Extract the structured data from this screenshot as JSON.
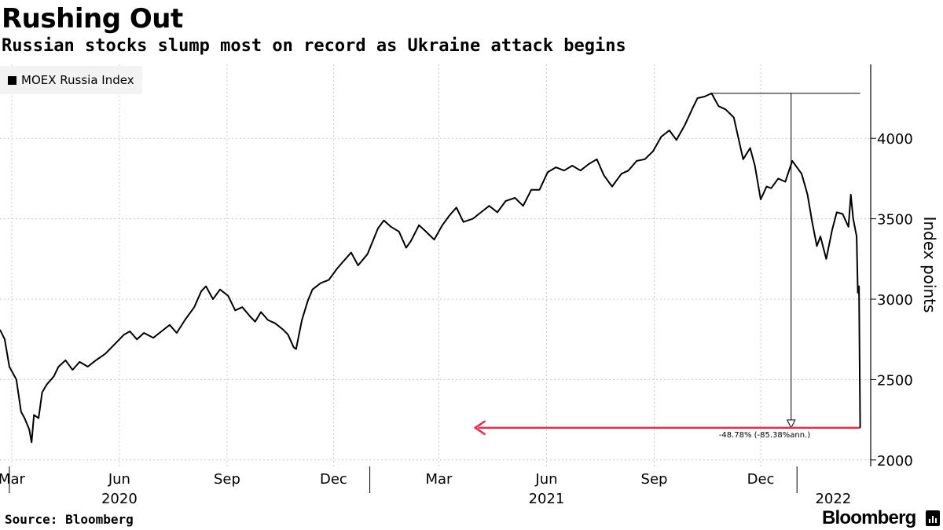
{
  "header": {
    "title": "Rushing Out",
    "subtitle": "Russian stocks slump most on record as Ukraine attack begins"
  },
  "footer": {
    "source": "Source: Bloomberg",
    "brand": "Bloomberg"
  },
  "colors": {
    "line": "#000000",
    "grid": "#cccccc",
    "arrow": "#e0304b",
    "legend_bg": "#f3f3f3"
  },
  "chart_data": {
    "type": "line",
    "title": "Rushing Out",
    "subtitle": "Russian stocks slump most on record as Ukraine attack begins",
    "ylabel": "Index points",
    "xlabel": "",
    "ylim": [
      1960,
      4460
    ],
    "xlim": [
      "2020-02-20",
      "2022-03-05"
    ],
    "yticks": [
      2000,
      2500,
      3000,
      3500,
      4000
    ],
    "grid": true,
    "legend_position": "top-left",
    "x_ticks": [
      {
        "date": "2020-03-01",
        "label": "Mar"
      },
      {
        "date": "2020-06-01",
        "label": "Jun"
      },
      {
        "date": "2020-09-01",
        "label": "Sep"
      },
      {
        "date": "2020-12-01",
        "label": "Dec"
      },
      {
        "date": "2021-03-01",
        "label": "Mar"
      },
      {
        "date": "2021-06-01",
        "label": "Jun"
      },
      {
        "date": "2021-09-01",
        "label": "Sep"
      },
      {
        "date": "2021-12-01",
        "label": "Dec"
      }
    ],
    "year_labels": [
      {
        "date": "2020-06-01",
        "label": "2020"
      },
      {
        "date": "2021-06-01",
        "label": "2021"
      },
      {
        "date": "2022-02-01",
        "label": "2022"
      }
    ],
    "series": [
      {
        "name": "MOEX Russia Index",
        "points": [
          [
            "2020-02-20",
            2810
          ],
          [
            "2020-02-24",
            2750
          ],
          [
            "2020-02-28",
            2580
          ],
          [
            "2020-03-05",
            2500
          ],
          [
            "2020-03-09",
            2300
          ],
          [
            "2020-03-12",
            2260
          ],
          [
            "2020-03-16",
            2190
          ],
          [
            "2020-03-18",
            2110
          ],
          [
            "2020-03-20",
            2280
          ],
          [
            "2020-03-24",
            2260
          ],
          [
            "2020-03-27",
            2420
          ],
          [
            "2020-03-31",
            2470
          ],
          [
            "2020-04-06",
            2520
          ],
          [
            "2020-04-10",
            2580
          ],
          [
            "2020-04-16",
            2620
          ],
          [
            "2020-04-22",
            2560
          ],
          [
            "2020-04-28",
            2610
          ],
          [
            "2020-05-05",
            2580
          ],
          [
            "2020-05-12",
            2620
          ],
          [
            "2020-05-20",
            2660
          ],
          [
            "2020-05-28",
            2720
          ],
          [
            "2020-06-05",
            2780
          ],
          [
            "2020-06-10",
            2800
          ],
          [
            "2020-06-16",
            2750
          ],
          [
            "2020-06-22",
            2790
          ],
          [
            "2020-06-30",
            2760
          ],
          [
            "2020-07-07",
            2800
          ],
          [
            "2020-07-14",
            2840
          ],
          [
            "2020-07-20",
            2790
          ],
          [
            "2020-07-27",
            2870
          ],
          [
            "2020-08-04",
            2950
          ],
          [
            "2020-08-10",
            3050
          ],
          [
            "2020-08-14",
            3080
          ],
          [
            "2020-08-20",
            3000
          ],
          [
            "2020-08-26",
            3060
          ],
          [
            "2020-09-02",
            3020
          ],
          [
            "2020-09-08",
            2930
          ],
          [
            "2020-09-14",
            2950
          ],
          [
            "2020-09-21",
            2890
          ],
          [
            "2020-09-25",
            2860
          ],
          [
            "2020-09-30",
            2920
          ],
          [
            "2020-10-06",
            2870
          ],
          [
            "2020-10-12",
            2850
          ],
          [
            "2020-10-19",
            2810
          ],
          [
            "2020-10-23",
            2780
          ],
          [
            "2020-10-28",
            2700
          ],
          [
            "2020-10-30",
            2690
          ],
          [
            "2020-11-04",
            2870
          ],
          [
            "2020-11-09",
            2990
          ],
          [
            "2020-11-13",
            3060
          ],
          [
            "2020-11-20",
            3100
          ],
          [
            "2020-11-27",
            3120
          ],
          [
            "2020-12-04",
            3190
          ],
          [
            "2020-12-10",
            3240
          ],
          [
            "2020-12-16",
            3290
          ],
          [
            "2020-12-22",
            3210
          ],
          [
            "2020-12-30",
            3280
          ],
          [
            "2021-01-08",
            3440
          ],
          [
            "2021-01-13",
            3490
          ],
          [
            "2021-01-19",
            3450
          ],
          [
            "2021-01-26",
            3420
          ],
          [
            "2021-02-01",
            3320
          ],
          [
            "2021-02-05",
            3360
          ],
          [
            "2021-02-12",
            3460
          ],
          [
            "2021-02-18",
            3420
          ],
          [
            "2021-02-25",
            3370
          ],
          [
            "2021-03-04",
            3460
          ],
          [
            "2021-03-10",
            3520
          ],
          [
            "2021-03-16",
            3570
          ],
          [
            "2021-03-22",
            3480
          ],
          [
            "2021-03-30",
            3500
          ],
          [
            "2021-04-06",
            3540
          ],
          [
            "2021-04-13",
            3580
          ],
          [
            "2021-04-20",
            3540
          ],
          [
            "2021-04-27",
            3610
          ],
          [
            "2021-05-05",
            3630
          ],
          [
            "2021-05-12",
            3580
          ],
          [
            "2021-05-19",
            3680
          ],
          [
            "2021-05-26",
            3680
          ],
          [
            "2021-06-02",
            3790
          ],
          [
            "2021-06-09",
            3820
          ],
          [
            "2021-06-16",
            3800
          ],
          [
            "2021-06-23",
            3830
          ],
          [
            "2021-06-30",
            3800
          ],
          [
            "2021-07-07",
            3840
          ],
          [
            "2021-07-14",
            3870
          ],
          [
            "2021-07-20",
            3770
          ],
          [
            "2021-07-27",
            3700
          ],
          [
            "2021-08-04",
            3780
          ],
          [
            "2021-08-10",
            3800
          ],
          [
            "2021-08-17",
            3860
          ],
          [
            "2021-08-24",
            3870
          ],
          [
            "2021-08-31",
            3920
          ],
          [
            "2021-09-07",
            4010
          ],
          [
            "2021-09-14",
            4050
          ],
          [
            "2021-09-20",
            3990
          ],
          [
            "2021-09-27",
            4080
          ],
          [
            "2021-10-04",
            4190
          ],
          [
            "2021-10-08",
            4250
          ],
          [
            "2021-10-14",
            4260
          ],
          [
            "2021-10-20",
            4280
          ],
          [
            "2021-10-26",
            4200
          ],
          [
            "2021-11-01",
            4180
          ],
          [
            "2021-11-08",
            4130
          ],
          [
            "2021-11-12",
            4000
          ],
          [
            "2021-11-16",
            3870
          ],
          [
            "2021-11-22",
            3940
          ],
          [
            "2021-11-26",
            3830
          ],
          [
            "2021-12-01",
            3620
          ],
          [
            "2021-12-06",
            3700
          ],
          [
            "2021-12-10",
            3690
          ],
          [
            "2021-12-16",
            3750
          ],
          [
            "2021-12-22",
            3730
          ],
          [
            "2021-12-28",
            3860
          ],
          [
            "2022-01-05",
            3780
          ],
          [
            "2022-01-10",
            3650
          ],
          [
            "2022-01-14",
            3480
          ],
          [
            "2022-01-18",
            3330
          ],
          [
            "2022-01-21",
            3390
          ],
          [
            "2022-01-26",
            3250
          ],
          [
            "2022-01-31",
            3430
          ],
          [
            "2022-02-04",
            3540
          ],
          [
            "2022-02-09",
            3530
          ],
          [
            "2022-02-14",
            3450
          ],
          [
            "2022-02-16",
            3650
          ],
          [
            "2022-02-18",
            3500
          ],
          [
            "2022-02-21",
            3390
          ],
          [
            "2022-02-22",
            3040
          ],
          [
            "2022-02-23",
            3080
          ],
          [
            "2022-02-24",
            2200
          ]
        ]
      }
    ],
    "annotations": {
      "peak_line": {
        "from_date": "2021-10-20",
        "to_date": "2022-02-24",
        "value": 4280
      },
      "drop_marker": {
        "date": "2021-12-27",
        "from_value": 4280,
        "to_value": 2200
      },
      "label": "-48.78% (-85.38%ann.)",
      "red_arrow": {
        "from_date": "2022-02-24",
        "to_date": "2021-04-01",
        "value": 2200
      }
    }
  }
}
